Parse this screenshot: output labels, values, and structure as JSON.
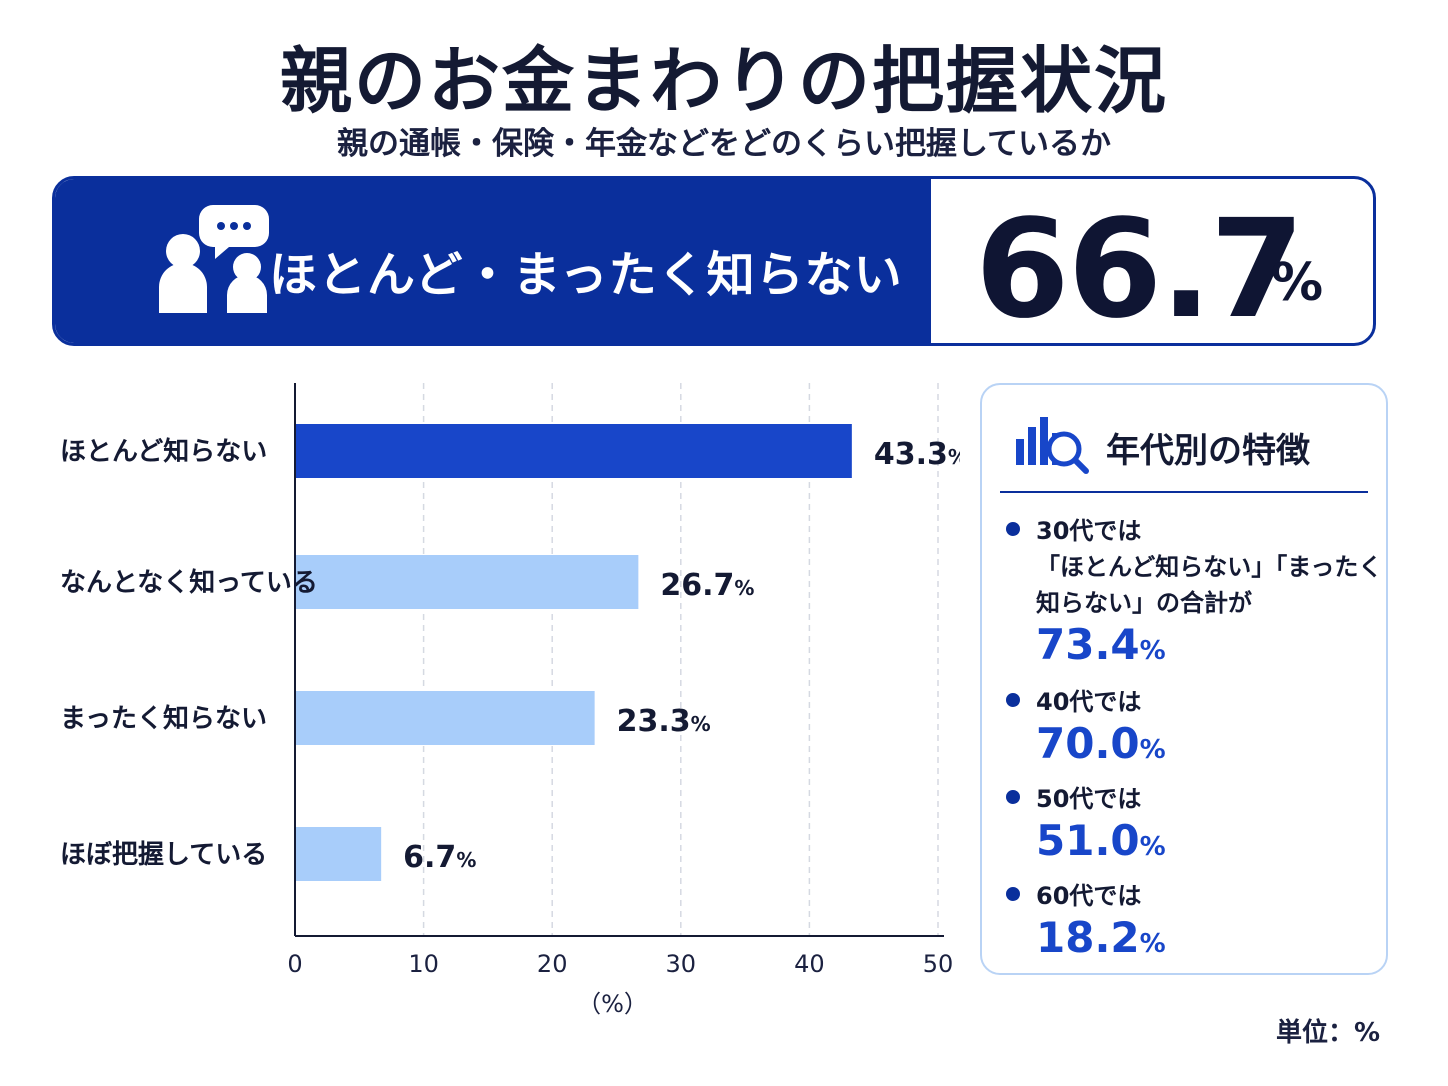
{
  "title": "親のお金まわりの把握状況",
  "subtitle": "親の通帳・保険・年金などをどのくらい把握しているか",
  "headline": {
    "label": "ほとんど・まったく知らない",
    "value": "66.7",
    "unit": "%",
    "icon": "people-speech-bubble-icon"
  },
  "chart_data": {
    "type": "bar",
    "orientation": "horizontal",
    "categories": [
      "ほとんど知らない",
      "なんとなく知っている",
      "まったく知らない",
      "ほぼ把握している"
    ],
    "values": [
      43.3,
      26.7,
      23.3,
      6.7
    ],
    "value_labels": [
      "43.3",
      "26.7",
      "23.3",
      "6.7"
    ],
    "value_unit": "%",
    "xlim": [
      0,
      50
    ],
    "xticks": [
      "0",
      "10",
      "20",
      "30",
      "40",
      "50"
    ],
    "xlabel": "（%）",
    "grid": true,
    "highlight_color": "#1846c9",
    "bar_color": "#a8cdfa"
  },
  "panel": {
    "title": "年代別の特徴",
    "icon": "bar-chart-magnifier-icon",
    "items": [
      {
        "lines": [
          "30代では",
          "「ほとんど知らない」「まったく",
          "知らない」の合計が"
        ],
        "value": "73.4",
        "unit": "%"
      },
      {
        "lines": [
          "40代では"
        ],
        "value": "70.0",
        "unit": "%"
      },
      {
        "lines": [
          "50代では"
        ],
        "value": "51.0",
        "unit": "%"
      },
      {
        "lines": [
          "60代では"
        ],
        "value": "18.2",
        "unit": "%"
      }
    ]
  },
  "unit_note": "単位：%"
}
